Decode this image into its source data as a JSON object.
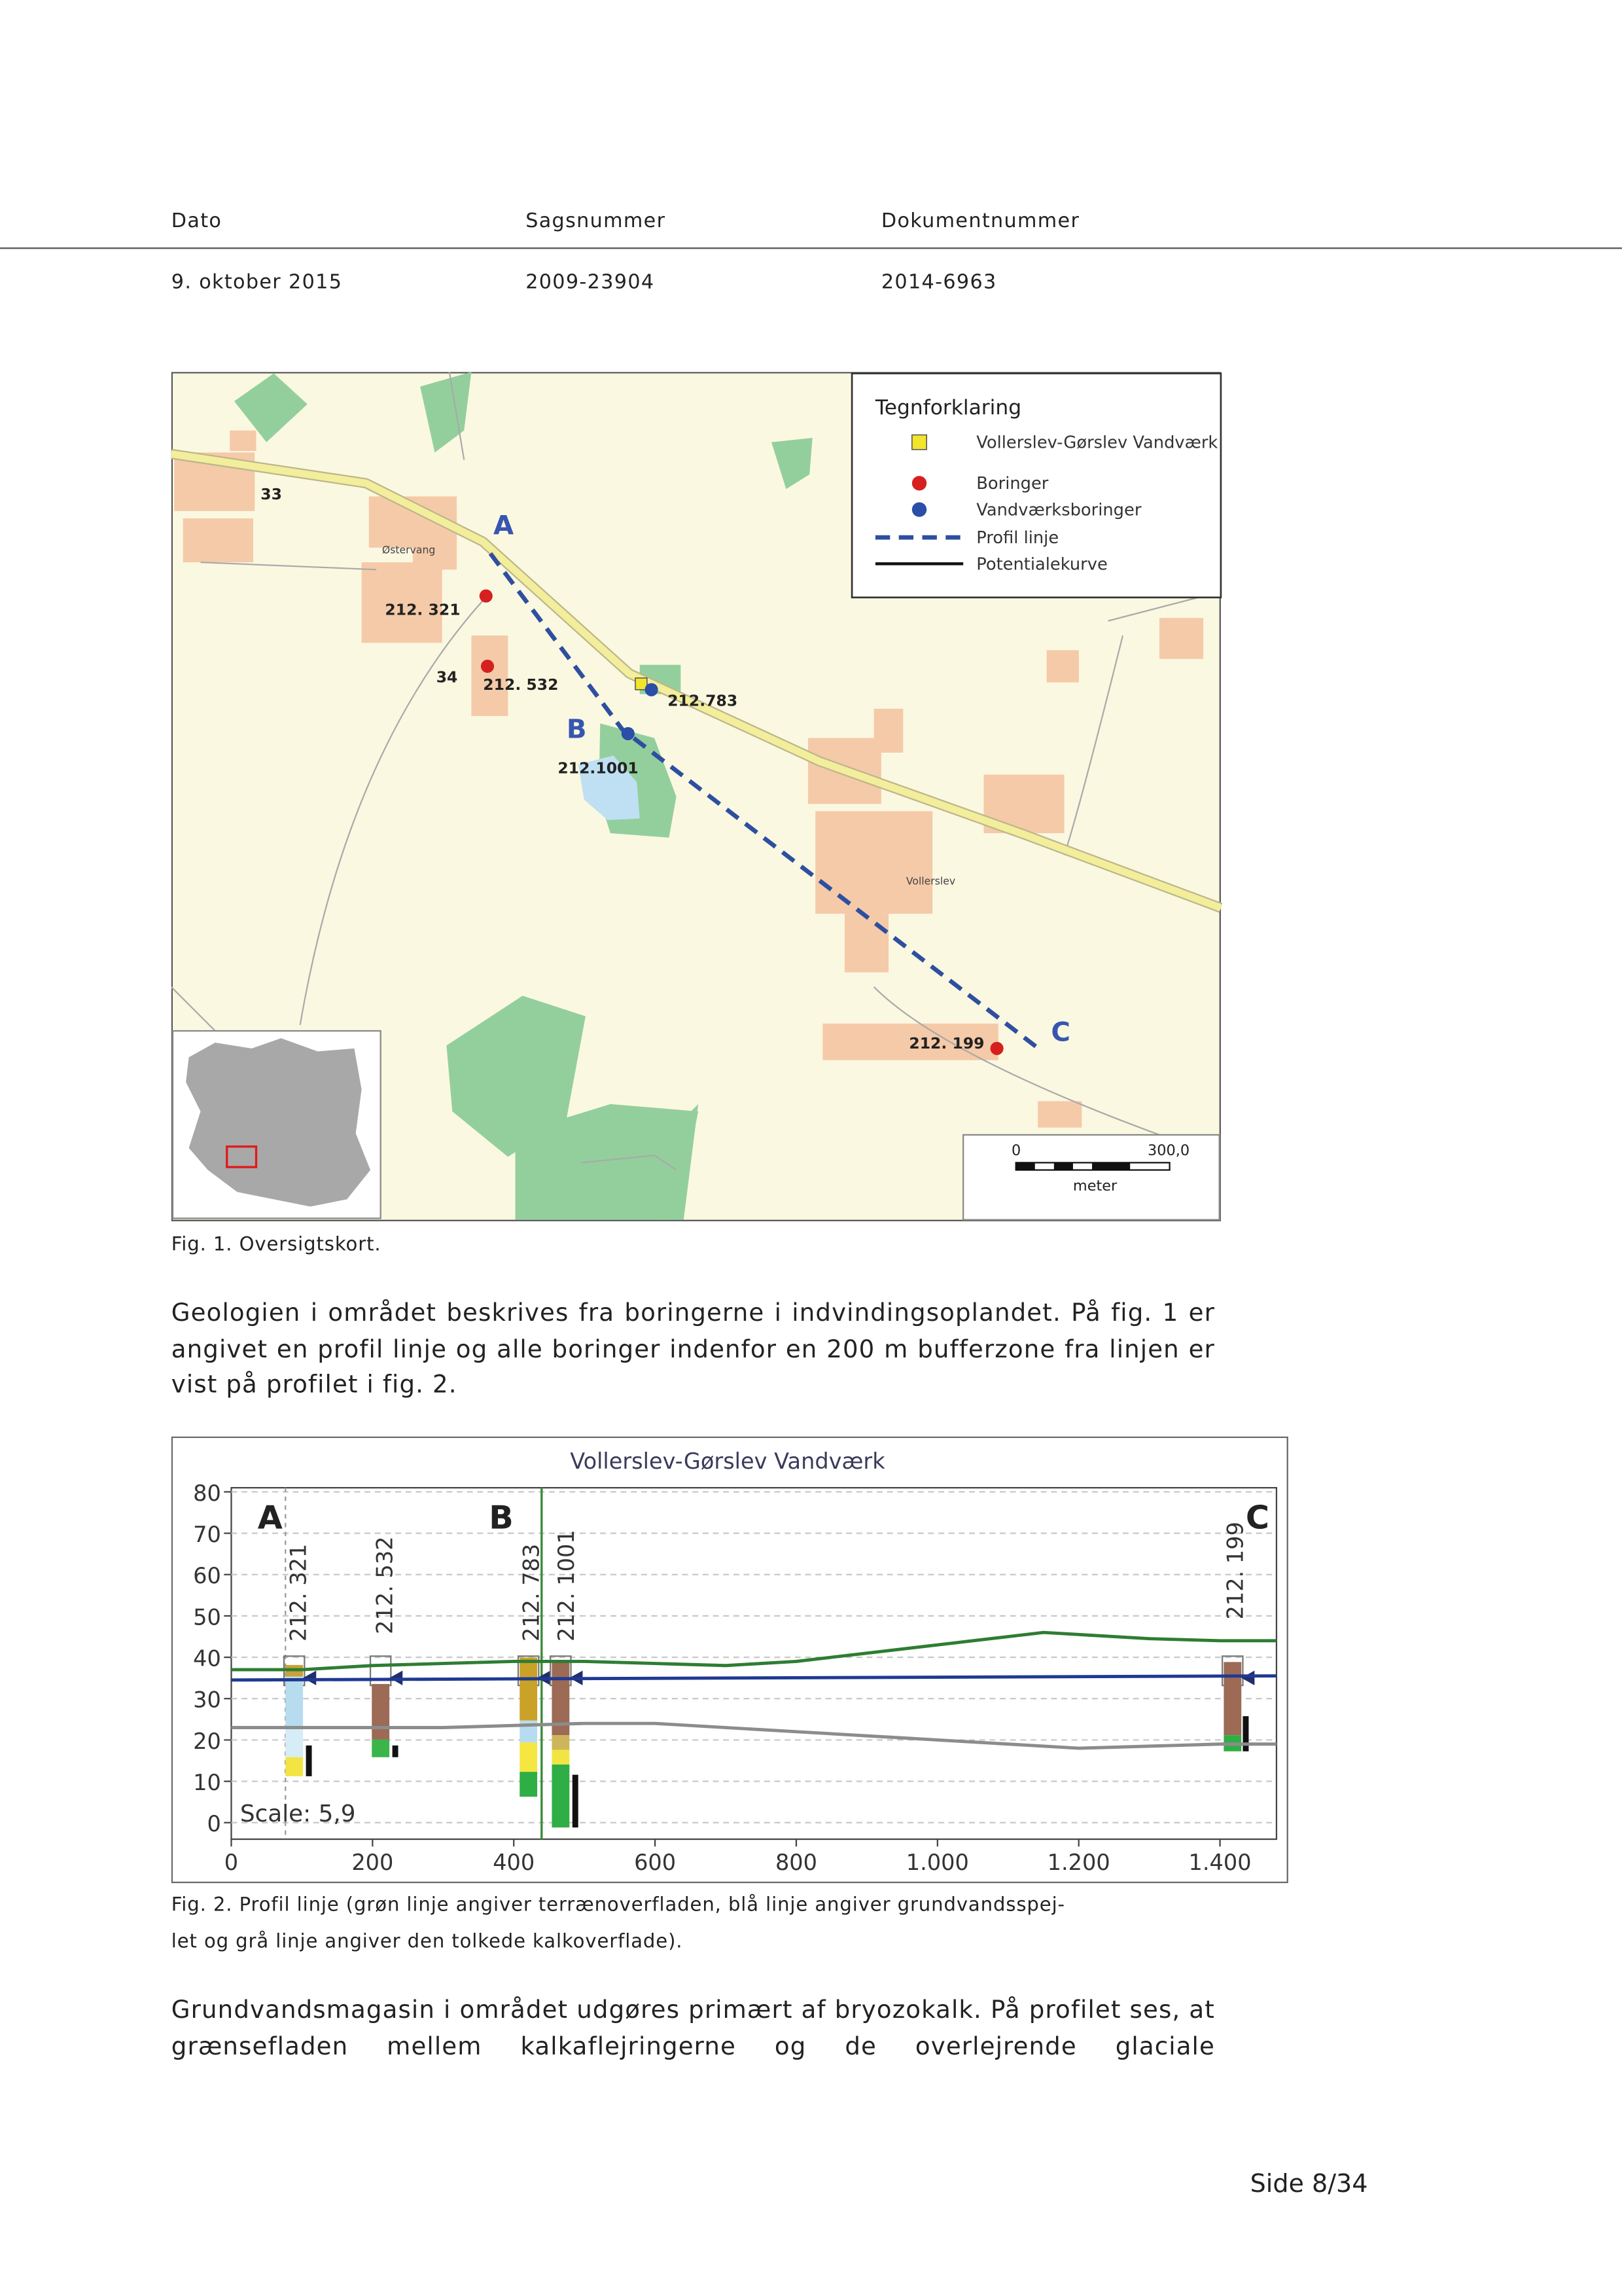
{
  "header": {
    "labels": [
      "Dato",
      "Sagsnummer",
      "Dokumentnummer"
    ],
    "values": [
      "9. oktober 2015",
      "2009-23904",
      "2014-6963"
    ]
  },
  "figure1": {
    "legend": {
      "title": "Tegnforklaring",
      "items": [
        "Vollerslev-Gørslev Vandværk",
        "Boringer",
        "Vandværksboringer",
        "Profil linje",
        "Potentialekurve"
      ]
    },
    "profile_points": [
      "A",
      "B",
      "C"
    ],
    "borings": [
      "212. 321",
      "212. 532",
      "212.783",
      "212.1001",
      "212. 199"
    ],
    "places": [
      "33",
      "34",
      "Østervang",
      "Vollerslev"
    ],
    "scale": {
      "start": "0",
      "end": "300,0",
      "unit": "meter"
    },
    "caption": "Fig. 1. Oversigtskort."
  },
  "paragraphs": [
    "Geologien i området beskrives fra boringerne i indvindingsoplandet. På fig. 1 er angivet en profil linje og alle boringer indenfor en 200 m bufferzone fra linjen er vist på profilet i fig. 2.",
    "Grundvandsmagasin i området udgøres primært af bryozokalk. På profilet ses, at grænsefladen mellem kalkaflejringerne og de overlejrende glaciale"
  ],
  "figure2": {
    "title": "Vollerslev-Gørslev Vandværk",
    "xlim": [
      0,
      1480
    ],
    "ylim": [
      -4,
      81
    ],
    "yticks": [
      0,
      10,
      20,
      30,
      40,
      50,
      60,
      70,
      80
    ],
    "xticks": [
      0,
      200,
      400,
      600,
      800,
      {
        "value": 1000,
        "label": "1.000"
      },
      {
        "value": 1200,
        "label": "1.200"
      },
      {
        "value": 1400,
        "label": "1.400"
      }
    ],
    "markers": [
      "A",
      "B",
      "C"
    ],
    "borings": [
      "212. 321",
      "212. 532",
      "212. 783",
      "212. 1001",
      "212. 199"
    ],
    "scale_label": "Scale: 5,9",
    "series": [
      {
        "color": "#2e7d32",
        "x": [
          0,
          100,
          200,
          300,
          400,
          500,
          600,
          700,
          800,
          900,
          1000,
          1100,
          1150,
          1200,
          1300,
          1400,
          1480
        ],
        "values": [
          37,
          37,
          38,
          38.5,
          39,
          39,
          38.5,
          38,
          39,
          41,
          43,
          45,
          46,
          45.5,
          44.5,
          44,
          44
        ]
      },
      {
        "color": "#1f3a93",
        "x": [
          0,
          1480
        ],
        "values": [
          34.5,
          35.5
        ]
      },
      {
        "color": "#8c8c8c",
        "x": [
          0,
          300,
          500,
          600,
          800,
          1000,
          1200,
          1400,
          1480
        ],
        "values": [
          23,
          23,
          24,
          24,
          22,
          20,
          18,
          19,
          19
        ]
      }
    ],
    "caption": [
      "Fig. 2. Profil linje (grøn linje angiver terrænoverfladen, blå linje angiver grundvandsspej-",
      "let og grå linje angiver den tolkede kalkoverflade)."
    ]
  },
  "footer": {
    "page": "Side 8/34"
  }
}
